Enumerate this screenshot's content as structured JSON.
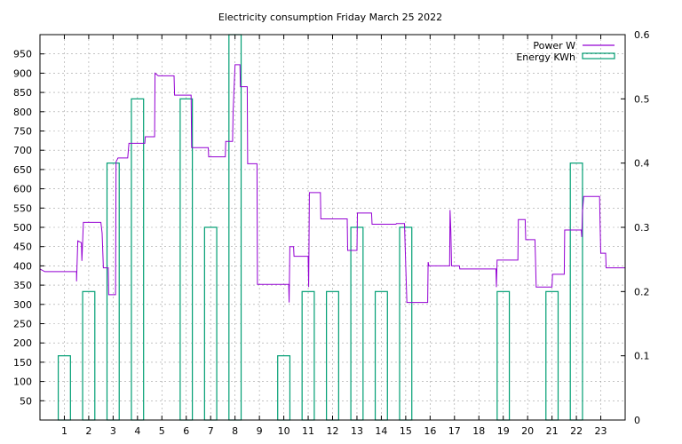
{
  "chart_data": {
    "type": "bar+line",
    "title": "Electricity consumption Friday March 25 2022",
    "xlabel": "",
    "ylabel": "",
    "y2label": "",
    "xlim": [
      0,
      24
    ],
    "ylim": [
      0,
      1000
    ],
    "y2lim": [
      0,
      0.6
    ],
    "grid": true,
    "legend_position": "top-right",
    "x_ticks": [
      "1",
      "2",
      "3",
      "4",
      "5",
      "6",
      "7",
      "8",
      "9",
      "10",
      "11",
      "12",
      "13",
      "14",
      "15",
      "16",
      "17",
      "18",
      "19",
      "20",
      "21",
      "22",
      "23"
    ],
    "y_ticks": [
      "50",
      "100",
      "150",
      "200",
      "250",
      "300",
      "350",
      "400",
      "450",
      "500",
      "550",
      "600",
      "650",
      "700",
      "750",
      "800",
      "850",
      "900",
      "950"
    ],
    "y2_ticks": [
      "0",
      "0.1",
      "0.2",
      "0.3",
      "0.4",
      "0.5",
      "0.6"
    ],
    "series": [
      {
        "name": "Power W",
        "type": "step-line",
        "color": "#9400d3",
        "points": [
          [
            0.0,
            392
          ],
          [
            0.2,
            385
          ],
          [
            1.5,
            385
          ],
          [
            1.5,
            360
          ],
          [
            1.55,
            465
          ],
          [
            1.7,
            460
          ],
          [
            1.72,
            413
          ],
          [
            1.78,
            513
          ],
          [
            2.5,
            513
          ],
          [
            2.55,
            485
          ],
          [
            2.6,
            395
          ],
          [
            2.8,
            395
          ],
          [
            2.82,
            325
          ],
          [
            3.1,
            325
          ],
          [
            3.12,
            670
          ],
          [
            3.2,
            680
          ],
          [
            3.6,
            680
          ],
          [
            3.65,
            718
          ],
          [
            4.3,
            718
          ],
          [
            4.32,
            735
          ],
          [
            4.7,
            735
          ],
          [
            4.72,
            900
          ],
          [
            4.85,
            893
          ],
          [
            5.5,
            893
          ],
          [
            5.52,
            843
          ],
          [
            6.2,
            843
          ],
          [
            6.22,
            707
          ],
          [
            6.9,
            707
          ],
          [
            6.92,
            683
          ],
          [
            7.6,
            683
          ],
          [
            7.62,
            723
          ],
          [
            7.9,
            723
          ],
          [
            7.92,
            800
          ],
          [
            8.0,
            922
          ],
          [
            8.2,
            922
          ],
          [
            8.22,
            865
          ],
          [
            8.5,
            865
          ],
          [
            8.52,
            665
          ],
          [
            8.9,
            665
          ],
          [
            8.92,
            352
          ],
          [
            10.2,
            352
          ],
          [
            10.22,
            305
          ],
          [
            10.25,
            450
          ],
          [
            10.4,
            450
          ],
          [
            10.42,
            425
          ],
          [
            11.0,
            425
          ],
          [
            11.02,
            345
          ],
          [
            11.05,
            590
          ],
          [
            11.5,
            590
          ],
          [
            11.52,
            522
          ],
          [
            12.6,
            522
          ],
          [
            12.62,
            440
          ],
          [
            13.0,
            440
          ],
          [
            13.02,
            537
          ],
          [
            13.6,
            537
          ],
          [
            13.62,
            508
          ],
          [
            14.6,
            508
          ],
          [
            14.62,
            510
          ],
          [
            14.95,
            510
          ],
          [
            15.0,
            400
          ],
          [
            15.05,
            305
          ],
          [
            15.9,
            305
          ],
          [
            15.92,
            410
          ],
          [
            15.95,
            400
          ],
          [
            16.8,
            400
          ],
          [
            16.82,
            545
          ],
          [
            16.85,
            490
          ],
          [
            16.88,
            400
          ],
          [
            17.2,
            400
          ],
          [
            17.22,
            392
          ],
          [
            18.7,
            392
          ],
          [
            18.72,
            345
          ],
          [
            18.75,
            415
          ],
          [
            19.6,
            415
          ],
          [
            19.62,
            520
          ],
          [
            19.9,
            520
          ],
          [
            19.92,
            468
          ],
          [
            20.3,
            468
          ],
          [
            20.32,
            420
          ],
          [
            20.35,
            345
          ],
          [
            21.0,
            345
          ],
          [
            21.02,
            378
          ],
          [
            21.5,
            378
          ],
          [
            21.52,
            493
          ],
          [
            22.2,
            493
          ],
          [
            22.22,
            475
          ],
          [
            22.25,
            540
          ],
          [
            22.3,
            580
          ],
          [
            22.95,
            580
          ],
          [
            22.97,
            515
          ],
          [
            23.0,
            433
          ],
          [
            23.2,
            433
          ],
          [
            23.22,
            395
          ],
          [
            24.0,
            395
          ]
        ]
      },
      {
        "name": "Energy KWh",
        "type": "bar",
        "color": "#009e73",
        "bar_width": 0.5,
        "x": [
          1,
          2,
          3,
          4,
          6,
          7,
          8,
          10,
          11,
          12,
          13,
          14,
          15,
          19,
          21,
          22
        ],
        "values": [
          0.1,
          0.2,
          0.4,
          0.5,
          0.5,
          0.3,
          0.6,
          0.1,
          0.2,
          0.2,
          0.3,
          0.2,
          0.3,
          0.2,
          0.2,
          0.4
        ]
      }
    ]
  }
}
